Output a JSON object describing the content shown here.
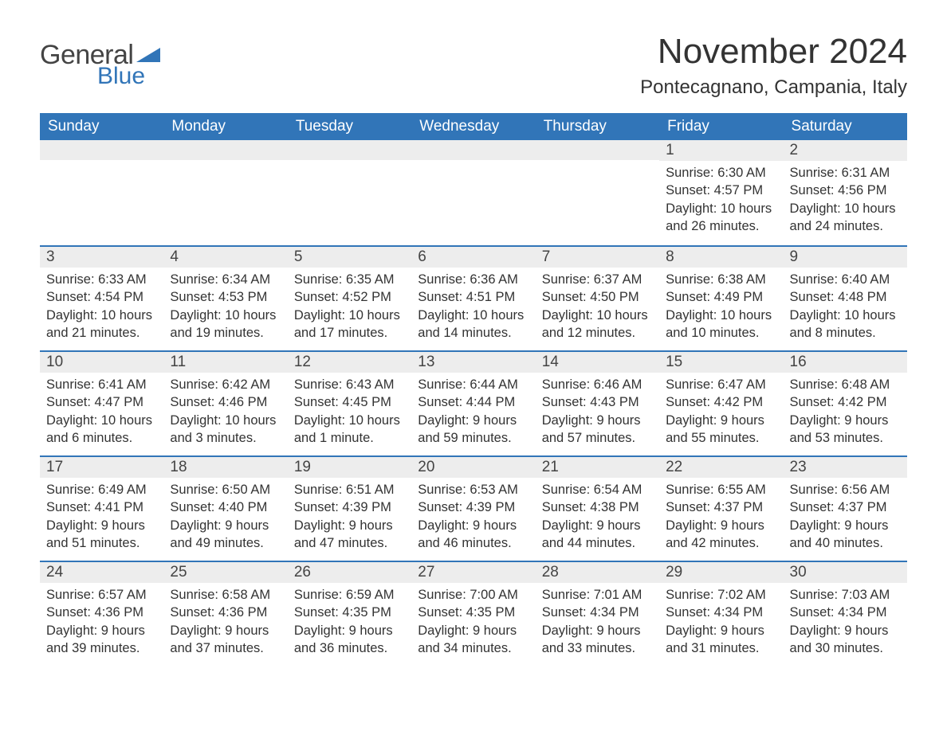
{
  "logo": {
    "text_general": "General",
    "text_blue": "Blue",
    "triangle_color": "#3175b8"
  },
  "header": {
    "month_title": "November 2024",
    "location": "Pontecagnano, Campania, Italy"
  },
  "styling": {
    "header_row_bg": "#3175b8",
    "header_row_text": "#ffffff",
    "day_header_bg": "#ededed",
    "day_header_border": "#3175b8",
    "page_bg": "#ffffff",
    "body_text_color": "#333333",
    "title_fontsize": 44,
    "location_fontsize": 24,
    "weekday_fontsize": 19,
    "daynum_fontsize": 19,
    "body_fontsize": 16.5
  },
  "weekdays": [
    "Sunday",
    "Monday",
    "Tuesday",
    "Wednesday",
    "Thursday",
    "Friday",
    "Saturday"
  ],
  "weeks": [
    [
      null,
      null,
      null,
      null,
      null,
      {
        "day": "1",
        "sunrise": "Sunrise: 6:30 AM",
        "sunset": "Sunset: 4:57 PM",
        "daylight": "Daylight: 10 hours and 26 minutes."
      },
      {
        "day": "2",
        "sunrise": "Sunrise: 6:31 AM",
        "sunset": "Sunset: 4:56 PM",
        "daylight": "Daylight: 10 hours and 24 minutes."
      }
    ],
    [
      {
        "day": "3",
        "sunrise": "Sunrise: 6:33 AM",
        "sunset": "Sunset: 4:54 PM",
        "daylight": "Daylight: 10 hours and 21 minutes."
      },
      {
        "day": "4",
        "sunrise": "Sunrise: 6:34 AM",
        "sunset": "Sunset: 4:53 PM",
        "daylight": "Daylight: 10 hours and 19 minutes."
      },
      {
        "day": "5",
        "sunrise": "Sunrise: 6:35 AM",
        "sunset": "Sunset: 4:52 PM",
        "daylight": "Daylight: 10 hours and 17 minutes."
      },
      {
        "day": "6",
        "sunrise": "Sunrise: 6:36 AM",
        "sunset": "Sunset: 4:51 PM",
        "daylight": "Daylight: 10 hours and 14 minutes."
      },
      {
        "day": "7",
        "sunrise": "Sunrise: 6:37 AM",
        "sunset": "Sunset: 4:50 PM",
        "daylight": "Daylight: 10 hours and 12 minutes."
      },
      {
        "day": "8",
        "sunrise": "Sunrise: 6:38 AM",
        "sunset": "Sunset: 4:49 PM",
        "daylight": "Daylight: 10 hours and 10 minutes."
      },
      {
        "day": "9",
        "sunrise": "Sunrise: 6:40 AM",
        "sunset": "Sunset: 4:48 PM",
        "daylight": "Daylight: 10 hours and 8 minutes."
      }
    ],
    [
      {
        "day": "10",
        "sunrise": "Sunrise: 6:41 AM",
        "sunset": "Sunset: 4:47 PM",
        "daylight": "Daylight: 10 hours and 6 minutes."
      },
      {
        "day": "11",
        "sunrise": "Sunrise: 6:42 AM",
        "sunset": "Sunset: 4:46 PM",
        "daylight": "Daylight: 10 hours and 3 minutes."
      },
      {
        "day": "12",
        "sunrise": "Sunrise: 6:43 AM",
        "sunset": "Sunset: 4:45 PM",
        "daylight": "Daylight: 10 hours and 1 minute."
      },
      {
        "day": "13",
        "sunrise": "Sunrise: 6:44 AM",
        "sunset": "Sunset: 4:44 PM",
        "daylight": "Daylight: 9 hours and 59 minutes."
      },
      {
        "day": "14",
        "sunrise": "Sunrise: 6:46 AM",
        "sunset": "Sunset: 4:43 PM",
        "daylight": "Daylight: 9 hours and 57 minutes."
      },
      {
        "day": "15",
        "sunrise": "Sunrise: 6:47 AM",
        "sunset": "Sunset: 4:42 PM",
        "daylight": "Daylight: 9 hours and 55 minutes."
      },
      {
        "day": "16",
        "sunrise": "Sunrise: 6:48 AM",
        "sunset": "Sunset: 4:42 PM",
        "daylight": "Daylight: 9 hours and 53 minutes."
      }
    ],
    [
      {
        "day": "17",
        "sunrise": "Sunrise: 6:49 AM",
        "sunset": "Sunset: 4:41 PM",
        "daylight": "Daylight: 9 hours and 51 minutes."
      },
      {
        "day": "18",
        "sunrise": "Sunrise: 6:50 AM",
        "sunset": "Sunset: 4:40 PM",
        "daylight": "Daylight: 9 hours and 49 minutes."
      },
      {
        "day": "19",
        "sunrise": "Sunrise: 6:51 AM",
        "sunset": "Sunset: 4:39 PM",
        "daylight": "Daylight: 9 hours and 47 minutes."
      },
      {
        "day": "20",
        "sunrise": "Sunrise: 6:53 AM",
        "sunset": "Sunset: 4:39 PM",
        "daylight": "Daylight: 9 hours and 46 minutes."
      },
      {
        "day": "21",
        "sunrise": "Sunrise: 6:54 AM",
        "sunset": "Sunset: 4:38 PM",
        "daylight": "Daylight: 9 hours and 44 minutes."
      },
      {
        "day": "22",
        "sunrise": "Sunrise: 6:55 AM",
        "sunset": "Sunset: 4:37 PM",
        "daylight": "Daylight: 9 hours and 42 minutes."
      },
      {
        "day": "23",
        "sunrise": "Sunrise: 6:56 AM",
        "sunset": "Sunset: 4:37 PM",
        "daylight": "Daylight: 9 hours and 40 minutes."
      }
    ],
    [
      {
        "day": "24",
        "sunrise": "Sunrise: 6:57 AM",
        "sunset": "Sunset: 4:36 PM",
        "daylight": "Daylight: 9 hours and 39 minutes."
      },
      {
        "day": "25",
        "sunrise": "Sunrise: 6:58 AM",
        "sunset": "Sunset: 4:36 PM",
        "daylight": "Daylight: 9 hours and 37 minutes."
      },
      {
        "day": "26",
        "sunrise": "Sunrise: 6:59 AM",
        "sunset": "Sunset: 4:35 PM",
        "daylight": "Daylight: 9 hours and 36 minutes."
      },
      {
        "day": "27",
        "sunrise": "Sunrise: 7:00 AM",
        "sunset": "Sunset: 4:35 PM",
        "daylight": "Daylight: 9 hours and 34 minutes."
      },
      {
        "day": "28",
        "sunrise": "Sunrise: 7:01 AM",
        "sunset": "Sunset: 4:34 PM",
        "daylight": "Daylight: 9 hours and 33 minutes."
      },
      {
        "day": "29",
        "sunrise": "Sunrise: 7:02 AM",
        "sunset": "Sunset: 4:34 PM",
        "daylight": "Daylight: 9 hours and 31 minutes."
      },
      {
        "day": "30",
        "sunrise": "Sunrise: 7:03 AM",
        "sunset": "Sunset: 4:34 PM",
        "daylight": "Daylight: 9 hours and 30 minutes."
      }
    ]
  ]
}
